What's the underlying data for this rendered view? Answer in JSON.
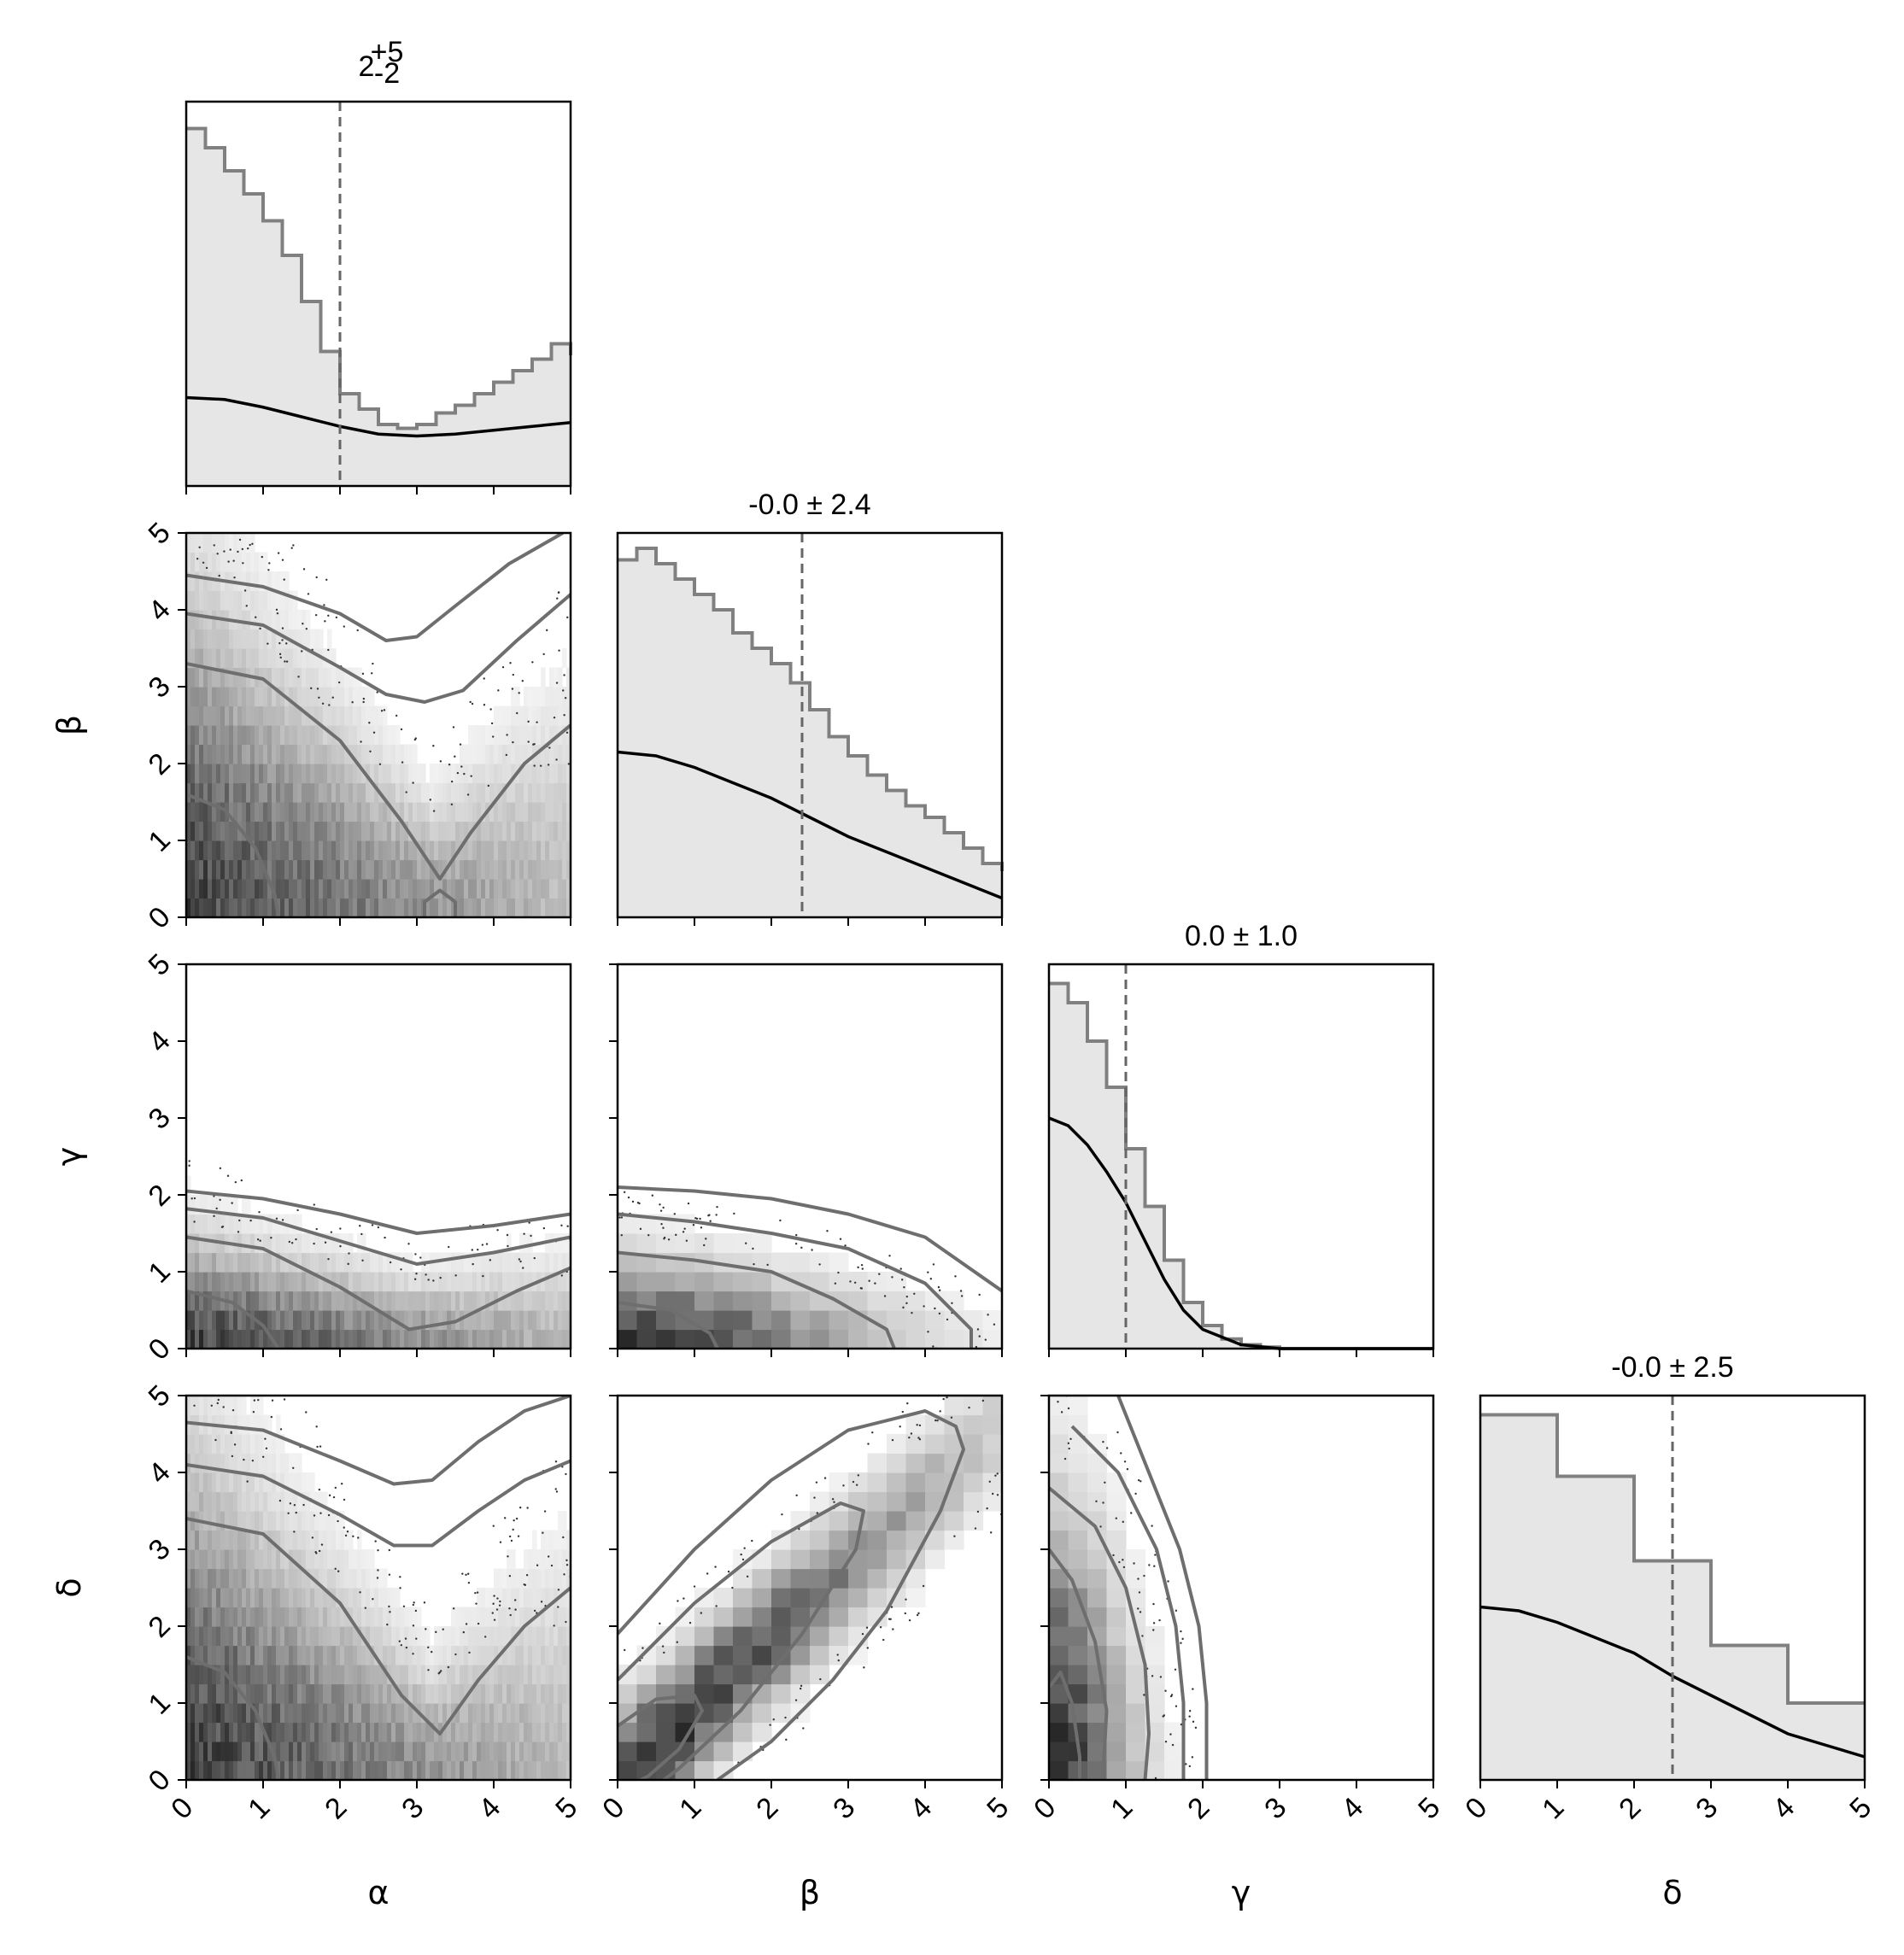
{
  "chart_data": {
    "type": "corner",
    "parameters": [
      "α",
      "β",
      "γ",
      "δ"
    ],
    "range": [
      0,
      5
    ],
    "ticks": [
      "0",
      "1",
      "2",
      "3",
      "4",
      "5"
    ],
    "colors": {
      "hist_fill": "#e6e6e6",
      "hist_step": "#808080",
      "kde_line": "#000000",
      "contour": "#6e6e6e",
      "marker": "#666666",
      "points": "#333333"
    },
    "diagonal": [
      {
        "param": "α",
        "title": {
          "base": "2",
          "sup": "+5",
          "sub": "-2"
        },
        "marker": 2.0,
        "kde": [
          [
            0,
            0.23
          ],
          [
            0.5,
            0.225
          ],
          [
            1,
            0.205
          ],
          [
            1.5,
            0.18
          ],
          [
            2,
            0.155
          ],
          [
            2.5,
            0.135
          ],
          [
            3,
            0.13
          ],
          [
            3.5,
            0.135
          ],
          [
            4,
            0.145
          ],
          [
            4.5,
            0.155
          ],
          [
            5,
            0.165
          ]
        ],
        "hist": [
          [
            0,
            0.93
          ],
          [
            0.25,
            0.88
          ],
          [
            0.5,
            0.82
          ],
          [
            0.75,
            0.76
          ],
          [
            1,
            0.69
          ],
          [
            1.25,
            0.6
          ],
          [
            1.5,
            0.48
          ],
          [
            1.75,
            0.35
          ],
          [
            2,
            0.24
          ],
          [
            2.25,
            0.2
          ],
          [
            2.5,
            0.16
          ],
          [
            2.75,
            0.15
          ],
          [
            3,
            0.16
          ],
          [
            3.25,
            0.19
          ],
          [
            3.5,
            0.21
          ],
          [
            3.75,
            0.24
          ],
          [
            4,
            0.27
          ],
          [
            4.25,
            0.3
          ],
          [
            4.5,
            0.33
          ],
          [
            4.75,
            0.37
          ],
          [
            5,
            0.34
          ]
        ]
      },
      {
        "param": "β",
        "title": {
          "text": "-0.0 ± 2.4"
        },
        "marker": 2.4,
        "kde": [
          [
            0,
            0.43
          ],
          [
            0.5,
            0.42
          ],
          [
            1,
            0.39
          ],
          [
            1.5,
            0.35
          ],
          [
            2,
            0.31
          ],
          [
            2.5,
            0.26
          ],
          [
            3,
            0.21
          ],
          [
            3.5,
            0.17
          ],
          [
            4,
            0.13
          ],
          [
            4.5,
            0.09
          ],
          [
            5,
            0.05
          ]
        ],
        "hist": [
          [
            0,
            0.93
          ],
          [
            0.25,
            0.96
          ],
          [
            0.5,
            0.92
          ],
          [
            0.75,
            0.88
          ],
          [
            1,
            0.84
          ],
          [
            1.25,
            0.8
          ],
          [
            1.5,
            0.74
          ],
          [
            1.75,
            0.7
          ],
          [
            2,
            0.66
          ],
          [
            2.25,
            0.61
          ],
          [
            2.5,
            0.54
          ],
          [
            2.75,
            0.47
          ],
          [
            3,
            0.42
          ],
          [
            3.25,
            0.37
          ],
          [
            3.5,
            0.33
          ],
          [
            3.75,
            0.29
          ],
          [
            4,
            0.26
          ],
          [
            4.25,
            0.22
          ],
          [
            4.5,
            0.18
          ],
          [
            4.75,
            0.14
          ],
          [
            5,
            0.12
          ]
        ]
      },
      {
        "param": "γ",
        "title": {
          "text": "0.0 ± 1.0"
        },
        "marker": 1.0,
        "kde": [
          [
            0,
            0.6
          ],
          [
            0.25,
            0.58
          ],
          [
            0.5,
            0.53
          ],
          [
            0.75,
            0.46
          ],
          [
            1,
            0.38
          ],
          [
            1.25,
            0.28
          ],
          [
            1.5,
            0.18
          ],
          [
            1.75,
            0.1
          ],
          [
            2,
            0.05
          ],
          [
            2.5,
            0.01
          ],
          [
            3,
            0.0
          ],
          [
            5,
            0.0
          ]
        ],
        "hist": [
          [
            0,
            0.95
          ],
          [
            0.25,
            0.9
          ],
          [
            0.5,
            0.8
          ],
          [
            0.75,
            0.68
          ],
          [
            1,
            0.52
          ],
          [
            1.25,
            0.37
          ],
          [
            1.5,
            0.23
          ],
          [
            1.75,
            0.12
          ],
          [
            2,
            0.06
          ],
          [
            2.25,
            0.025
          ],
          [
            2.5,
            0.01
          ],
          [
            2.75,
            0.004
          ],
          [
            3,
            0.0
          ]
        ]
      },
      {
        "param": "δ",
        "title": {
          "text": "-0.0 ± 2.5"
        },
        "marker": 2.5,
        "kde": [
          [
            0,
            0.45
          ],
          [
            0.5,
            0.44
          ],
          [
            1,
            0.41
          ],
          [
            1.5,
            0.37
          ],
          [
            2,
            0.33
          ],
          [
            2.5,
            0.27
          ],
          [
            3,
            0.22
          ],
          [
            3.5,
            0.17
          ],
          [
            4,
            0.12
          ],
          [
            4.5,
            0.09
          ],
          [
            5,
            0.06
          ]
        ],
        "hist": [
          [
            0,
            0.95
          ],
          [
            1,
            0.79
          ],
          [
            2,
            0.57
          ],
          [
            3,
            0.35
          ],
          [
            4,
            0.2
          ],
          [
            5,
            0.2
          ]
        ]
      }
    ],
    "pairs": [
      {
        "row": "β",
        "col": "α"
      },
      {
        "row": "γ",
        "col": "α"
      },
      {
        "row": "γ",
        "col": "β"
      },
      {
        "row": "δ",
        "col": "α"
      },
      {
        "row": "δ",
        "col": "β"
      },
      {
        "row": "δ",
        "col": "γ"
      }
    ]
  }
}
